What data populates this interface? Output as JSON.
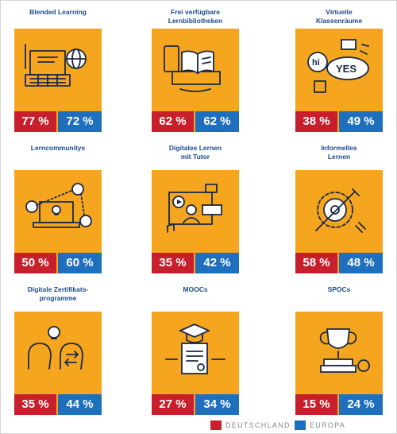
{
  "chart_data": {
    "type": "bar",
    "categories": [
      "Blended Learning",
      "Frei verfügbare\nLernbibliotheken",
      "Virtuelle\nKlassenräume",
      "Lerncommunitys",
      "Digitales Lernen\nmit Tutor",
      "Informelles\nLernen",
      "Digitale Zertifikats-\nprogramme",
      "MOOCs",
      "SPOCs"
    ],
    "series": [
      {
        "name": "DEUTSCHLAND",
        "values": [
          77,
          62,
          38,
          50,
          35,
          58,
          35,
          27,
          15
        ]
      },
      {
        "name": "EUROPA",
        "values": [
          72,
          62,
          49,
          60,
          42,
          48,
          44,
          34,
          24
        ]
      }
    ],
    "value_labels": {
      "DEUTSCHLAND": [
        "77 %",
        "62 %",
        "38 %",
        "50 %",
        "35 %",
        "58 %",
        "35 %",
        "27 %",
        "15 %"
      ],
      "EUROPA": [
        "72 %",
        "62 %",
        "49 %",
        "60 %",
        "42 %",
        "48 %",
        "44 %",
        "34 %",
        "24 %"
      ]
    },
    "icons": [
      "laptop-globe-icon",
      "tablet-book-icon",
      "chat-bubbles-icon",
      "network-laptop-icon",
      "video-tutor-icon",
      "gear-pencil-icon",
      "heads-lightbulb-icon",
      "graduation-diploma-icon",
      "trophy-books-icon"
    ],
    "legend_position": "bottom-right"
  },
  "colors": {
    "tile": "#f6a51e",
    "deutschland": "#c7202c",
    "europa": "#1f6fbf",
    "title": "#1a4a8a",
    "icon_stroke": "#1a2a44"
  }
}
